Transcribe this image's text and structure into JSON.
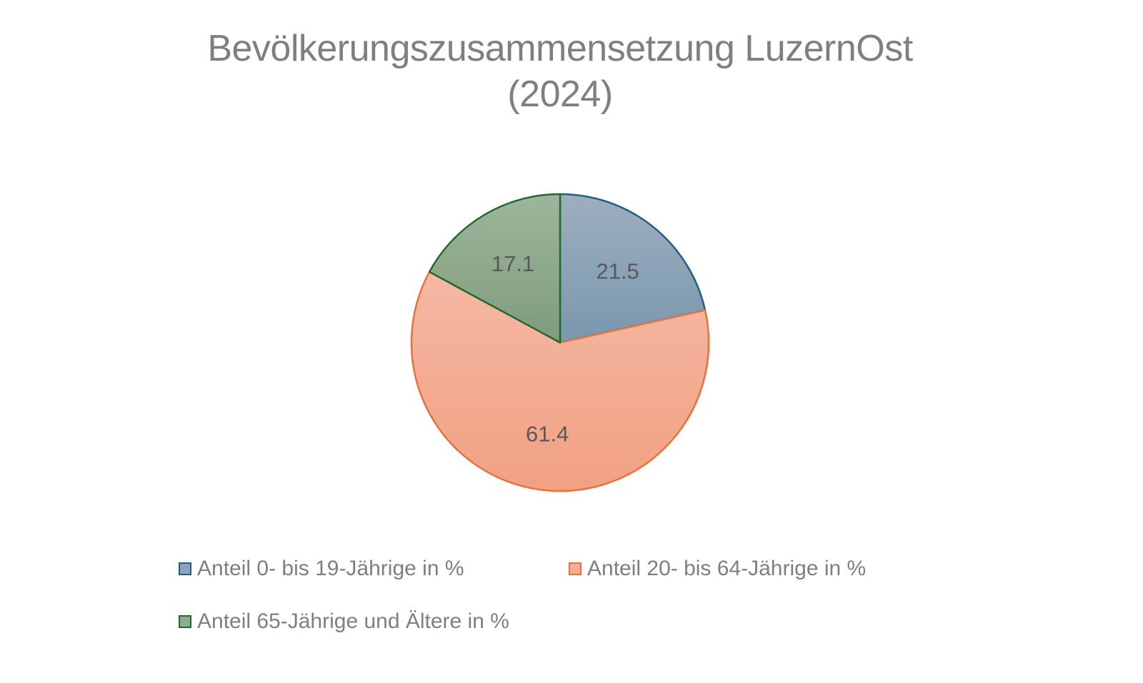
{
  "chart_data": {
    "type": "pie",
    "title": "Bevölkerungszusammensetzung LuzernOst (2024)",
    "title_lines": [
      "Bevölkerungszusammensetzung LuzernOst",
      "(2024)"
    ],
    "categories": [
      "Anteil 0- bis 19-Jährige in %",
      "Anteil 20- bis 64-Jährige in %",
      "Anteil 65-Jährige  und Ältere in %"
    ],
    "values": [
      21.5,
      61.4,
      17.1
    ],
    "data_labels": [
      "21.5",
      "61.4",
      "17.1"
    ],
    "colors": {
      "fill": [
        "#8ca3b8",
        "#f4ad96",
        "#8faa8c"
      ],
      "fill_top": [
        "#9dafbf",
        "#f4b8a4",
        "#9db59c"
      ],
      "fill_bottom": [
        "#7a97ae",
        "#f2a182",
        "#7f9c7c"
      ],
      "stroke": [
        "#1f5f88",
        "#e8723a",
        "#1e6b2a"
      ]
    },
    "start_angle": "12 o'clock",
    "direction": "clockwise",
    "legend_position": "bottom"
  }
}
